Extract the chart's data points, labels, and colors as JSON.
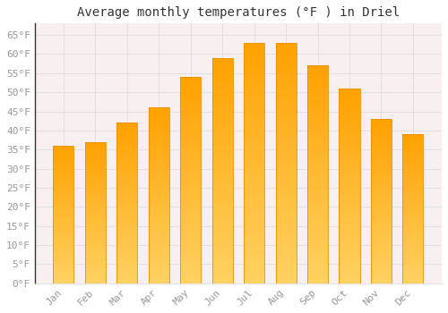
{
  "title": "Average monthly temperatures (°F ) in Driel",
  "months": [
    "Jan",
    "Feb",
    "Mar",
    "Apr",
    "May",
    "Jun",
    "Jul",
    "Aug",
    "Sep",
    "Oct",
    "Nov",
    "Dec"
  ],
  "values": [
    36,
    37,
    42,
    46,
    54,
    59,
    63,
    63,
    57,
    51,
    43,
    39
  ],
  "bar_color_top": "#FFB300",
  "bar_color_bottom": "#FFD060",
  "bar_edge_color": "#E89000",
  "background_color": "#FFFFFF",
  "plot_bg_color": "#F8F0F0",
  "grid_color": "#DDDDDD",
  "ylim": [
    0,
    68
  ],
  "yticks": [
    0,
    5,
    10,
    15,
    20,
    25,
    30,
    35,
    40,
    45,
    50,
    55,
    60,
    65
  ],
  "title_fontsize": 10,
  "tick_fontsize": 8,
  "tick_label_color": "#999999",
  "axis_color": "#333333"
}
